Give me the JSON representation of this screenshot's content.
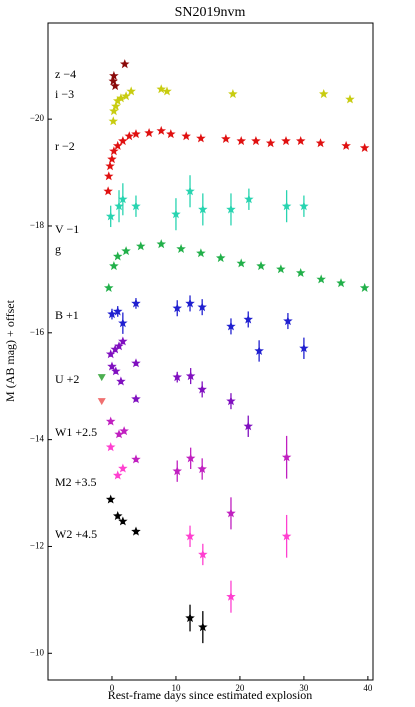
{
  "chart_data": {
    "type": "scatter",
    "title": "SN2019nvm",
    "x_label": "Rest-frame days since estimated explosion",
    "y_label": "M (AB mag) + offset",
    "xlim": [
      -10,
      40.8
    ],
    "ylim": [
      -9.5,
      -21.8
    ],
    "xticks": [
      0,
      10,
      20,
      30,
      40
    ],
    "yticks": [
      {
        "value": -20,
        "label": "−20"
      },
      {
        "value": -18,
        "label": "−18"
      },
      {
        "value": -16,
        "label": "−16"
      },
      {
        "value": -14,
        "label": "−14"
      },
      {
        "value": -12,
        "label": "−12"
      },
      {
        "value": -10,
        "label": "−10"
      }
    ],
    "series": [
      {
        "name": "z −4",
        "color": "#8b0a0a",
        "x": [
          0.2,
          0.3,
          0.5,
          2.0
        ],
        "values": [
          -20.71,
          -20.81,
          -20.62,
          -21.03
        ]
      },
      {
        "name": "i −3",
        "color": "#c8cc10",
        "x": [
          0.2,
          0.3,
          0.6,
          0.9,
          1.4,
          2.2,
          3.0,
          7.7,
          8.6,
          18.9,
          33.1,
          37.2
        ],
        "values": [
          -19.96,
          -20.15,
          -20.24,
          -20.34,
          -20.39,
          -20.43,
          -20.52,
          -20.56,
          -20.52,
          -20.47,
          -20.47,
          -20.37
        ]
      },
      {
        "name": "r −2",
        "color": "#e01010",
        "x": [
          -0.6,
          -0.5,
          -0.3,
          0,
          0.3,
          0.9,
          1.7,
          2.7,
          3.75,
          5.8,
          7.7,
          9.2,
          11.6,
          13.9,
          17.8,
          20.2,
          22.5,
          24.8,
          27.2,
          29.5,
          32.6,
          36.6,
          39.5
        ],
        "values": [
          -18.65,
          -18.93,
          -19.12,
          -19.25,
          -19.4,
          -19.5,
          -19.59,
          -19.68,
          -19.72,
          -19.74,
          -19.78,
          -19.72,
          -19.68,
          -19.64,
          -19.63,
          -19.59,
          -19.59,
          -19.55,
          -19.59,
          -19.59,
          -19.55,
          -19.5,
          -19.46
        ]
      },
      {
        "name": "V −1",
        "color": "#28d4b0",
        "x": [
          -0.2,
          1.1,
          1.7,
          3.75,
          10,
          12.2,
          14.2,
          18.6,
          21.4,
          27.3,
          30
        ],
        "values": [
          -18.18,
          -18.37,
          -18.5,
          -18.37,
          -18.22,
          -18.65,
          -18.31,
          -18.31,
          -18.5,
          -18.37,
          -18.37
        ],
        "errors": [
          0.2,
          0.3,
          0.3,
          0.2,
          0.3,
          0.3,
          0.3,
          0.3,
          0.2,
          0.3,
          0.2
        ]
      },
      {
        "name": "g",
        "color": "#22b04a",
        "x": [
          -0.5,
          0.3,
          0.9,
          2.2,
          4.5,
          7.7,
          10.8,
          13.9,
          17,
          20.2,
          23.3,
          26.4,
          29.5,
          32.7,
          35.8,
          39.5
        ],
        "values": [
          -16.84,
          -17.25,
          -17.43,
          -17.53,
          -17.62,
          -17.66,
          -17.57,
          -17.49,
          -17.4,
          -17.3,
          -17.25,
          -17.19,
          -17.12,
          -17.0,
          -16.93,
          -16.84
        ]
      },
      {
        "name": "B +1",
        "color": "#2020d0",
        "x": [
          0,
          0.9,
          1.7,
          3.75,
          10.2,
          12.2,
          14.1,
          18.6,
          21.3,
          23,
          27.5,
          30
        ],
        "values": [
          -16.35,
          -16.4,
          -16.18,
          -16.55,
          -16.46,
          -16.55,
          -16.48,
          -16.12,
          -16.25,
          -15.66,
          -16.22,
          -15.71
        ],
        "errors": [
          0.1,
          0.1,
          0.2,
          0.1,
          0.15,
          0.15,
          0.15,
          0.15,
          0.15,
          0.2,
          0.15,
          0.2
        ]
      },
      {
        "name": "U +2",
        "color": "#8010c0",
        "x": [
          -0.2,
          0.5,
          1.1,
          1.7,
          0,
          0.6,
          1.4,
          3.75,
          3.75,
          10.2,
          12.3,
          14.1,
          18.6,
          21.3
        ],
        "values": [
          -15.6,
          -15.69,
          -15.75,
          -15.84,
          -15.37,
          -15.28,
          -15.09,
          -15.43,
          -14.76,
          -15.17,
          -15.19,
          -14.94,
          -14.72,
          -14.25
        ],
        "errors": [
          0.05,
          0.05,
          0.05,
          0.05,
          0.05,
          0.05,
          0.05,
          0.05,
          0.05,
          0.1,
          0.15,
          0.15,
          0.15,
          0.2
        ]
      },
      {
        "name": "W1 +2.5",
        "color": "#c020c0",
        "x": [
          -0.2,
          1.1,
          1.9,
          3.75,
          10.2,
          12.3,
          14.1,
          18.6,
          27.3
        ],
        "values": [
          -14.34,
          -14.1,
          -14.16,
          -13.63,
          -13.41,
          -13.65,
          -13.45,
          -12.62,
          -13.67
        ],
        "errors": [
          0.05,
          0.05,
          0.05,
          0.05,
          0.2,
          0.2,
          0.2,
          0.3,
          0.4
        ]
      },
      {
        "name": "M2 +3.5",
        "color": "#ff40d0",
        "x": [
          -0.2,
          0.9,
          1.7,
          12.2,
          14.2,
          18.6,
          27.3
        ],
        "values": [
          -13.86,
          -13.33,
          -13.46,
          -12.19,
          -11.85,
          -11.06,
          -12.19
        ],
        "errors": [
          0.05,
          0.05,
          0.05,
          0.2,
          0.2,
          0.3,
          0.4
        ]
      },
      {
        "name": "W2 +4.5",
        "color": "#000000",
        "x": [
          -0.2,
          0.9,
          1.7,
          3.75,
          12.2,
          14.2
        ],
        "values": [
          -12.88,
          -12.57,
          -12.47,
          -12.28,
          -10.66,
          -10.49
        ],
        "errors": [
          0.05,
          0.05,
          0.05,
          0.05,
          0.25,
          0.3
        ]
      }
    ],
    "upper_limits": [
      {
        "color": "#4caf50",
        "x": -1.6,
        "value": -15.17
      },
      {
        "color": "#f07070",
        "x": -1.6,
        "value": -14.72
      }
    ]
  }
}
